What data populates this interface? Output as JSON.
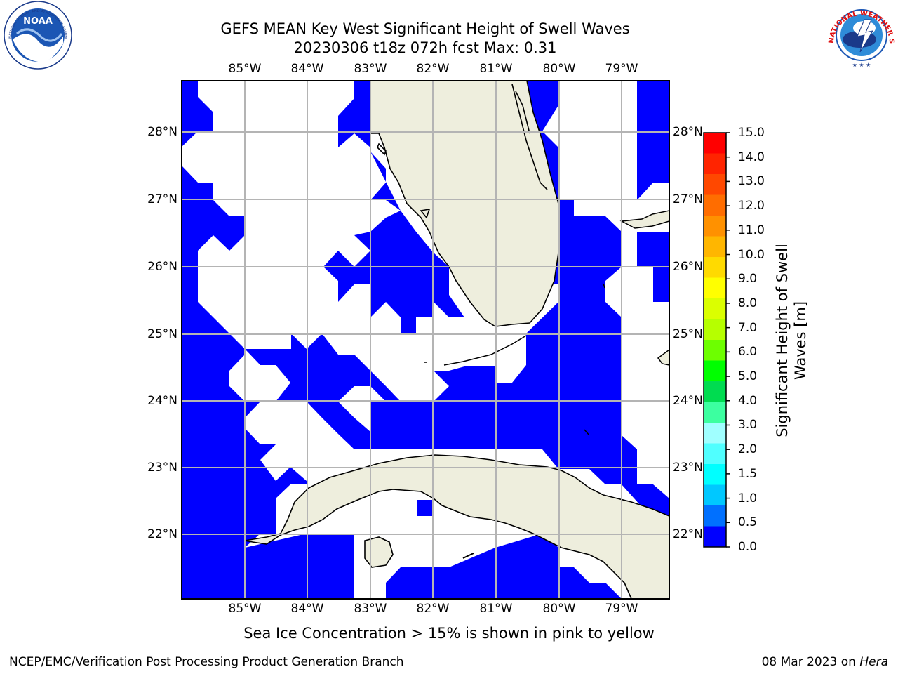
{
  "title": {
    "line1": "GEFS MEAN Key West Significant Height of Swell Waves",
    "line2": "20230306 t18z 072h fcst   Max: 0.31"
  },
  "axes": {
    "lon_labels": [
      "85°W",
      "84°W",
      "83°W",
      "82°W",
      "81°W",
      "80°W",
      "79°W"
    ],
    "lat_labels": [
      "28°N",
      "27°N",
      "26°N",
      "25°N",
      "24°N",
      "23°N",
      "22°N"
    ]
  },
  "colorbar": {
    "label_line1": "Significant Height of Swell",
    "label_line2": "Waves [m]",
    "ticks": [
      "15.0",
      "14.0",
      "13.0",
      "12.0",
      "11.0",
      "10.0",
      "9.0",
      "8.0",
      "7.0",
      "6.0",
      "5.0",
      "4.0",
      "3.0",
      "2.0",
      "1.5",
      "1.0",
      "0.5",
      "0.0"
    ],
    "colors": [
      "#ff0000",
      "#ff2400",
      "#ff4800",
      "#ff6d00",
      "#ff9100",
      "#ffb600",
      "#ffda00",
      "#ffff00",
      "#dbff00",
      "#b6ff00",
      "#6dff00",
      "#00ff00",
      "#00dc50",
      "#3cffa0",
      "#a0ffff",
      "#50ffff",
      "#00ffff",
      "#00c8ff",
      "#0070ff",
      "#0000ff"
    ]
  },
  "colors": {
    "ocean_swell": "#0000ff",
    "land": "#eeeedd",
    "grid": "#b4b4b4"
  },
  "logos": {
    "noaa_text": "NOAA",
    "noaa_ring_text": "NATIONAL OCEANIC AND ATMOSPHERIC ADMINISTRATION",
    "nws_ring_text": "NATIONAL WEATHER SERVICE"
  },
  "note": "Sea Ice Concentration > 15% is shown in pink to yellow",
  "footer": {
    "left": "NCEP/EMC/Verification Post Processing Product Generation Branch",
    "right_date": "08 Mar 2023 on ",
    "right_host": "Hera"
  }
}
